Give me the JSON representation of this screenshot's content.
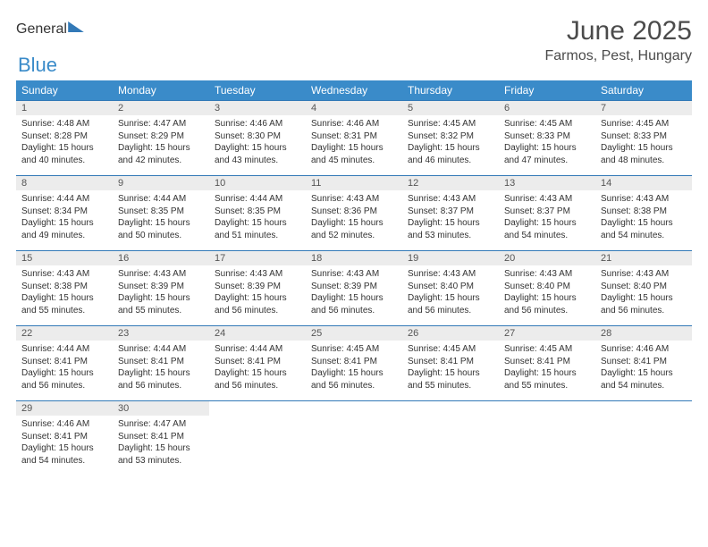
{
  "logo": {
    "word1": "General",
    "word2": "Blue"
  },
  "title": "June 2025",
  "location": "Farmos, Pest, Hungary",
  "colors": {
    "header_bg": "#3a8bc9",
    "header_text": "#ffffff",
    "row_divider": "#3279b7",
    "daynum_bg": "#ececec",
    "body_text": "#333333"
  },
  "weekdays": [
    "Sunday",
    "Monday",
    "Tuesday",
    "Wednesday",
    "Thursday",
    "Friday",
    "Saturday"
  ],
  "days": [
    {
      "n": 1,
      "sunrise": "4:48 AM",
      "sunset": "8:28 PM",
      "daylight": "15 hours and 40 minutes."
    },
    {
      "n": 2,
      "sunrise": "4:47 AM",
      "sunset": "8:29 PM",
      "daylight": "15 hours and 42 minutes."
    },
    {
      "n": 3,
      "sunrise": "4:46 AM",
      "sunset": "8:30 PM",
      "daylight": "15 hours and 43 minutes."
    },
    {
      "n": 4,
      "sunrise": "4:46 AM",
      "sunset": "8:31 PM",
      "daylight": "15 hours and 45 minutes."
    },
    {
      "n": 5,
      "sunrise": "4:45 AM",
      "sunset": "8:32 PM",
      "daylight": "15 hours and 46 minutes."
    },
    {
      "n": 6,
      "sunrise": "4:45 AM",
      "sunset": "8:33 PM",
      "daylight": "15 hours and 47 minutes."
    },
    {
      "n": 7,
      "sunrise": "4:45 AM",
      "sunset": "8:33 PM",
      "daylight": "15 hours and 48 minutes."
    },
    {
      "n": 8,
      "sunrise": "4:44 AM",
      "sunset": "8:34 PM",
      "daylight": "15 hours and 49 minutes."
    },
    {
      "n": 9,
      "sunrise": "4:44 AM",
      "sunset": "8:35 PM",
      "daylight": "15 hours and 50 minutes."
    },
    {
      "n": 10,
      "sunrise": "4:44 AM",
      "sunset": "8:35 PM",
      "daylight": "15 hours and 51 minutes."
    },
    {
      "n": 11,
      "sunrise": "4:43 AM",
      "sunset": "8:36 PM",
      "daylight": "15 hours and 52 minutes."
    },
    {
      "n": 12,
      "sunrise": "4:43 AM",
      "sunset": "8:37 PM",
      "daylight": "15 hours and 53 minutes."
    },
    {
      "n": 13,
      "sunrise": "4:43 AM",
      "sunset": "8:37 PM",
      "daylight": "15 hours and 54 minutes."
    },
    {
      "n": 14,
      "sunrise": "4:43 AM",
      "sunset": "8:38 PM",
      "daylight": "15 hours and 54 minutes."
    },
    {
      "n": 15,
      "sunrise": "4:43 AM",
      "sunset": "8:38 PM",
      "daylight": "15 hours and 55 minutes."
    },
    {
      "n": 16,
      "sunrise": "4:43 AM",
      "sunset": "8:39 PM",
      "daylight": "15 hours and 55 minutes."
    },
    {
      "n": 17,
      "sunrise": "4:43 AM",
      "sunset": "8:39 PM",
      "daylight": "15 hours and 56 minutes."
    },
    {
      "n": 18,
      "sunrise": "4:43 AM",
      "sunset": "8:39 PM",
      "daylight": "15 hours and 56 minutes."
    },
    {
      "n": 19,
      "sunrise": "4:43 AM",
      "sunset": "8:40 PM",
      "daylight": "15 hours and 56 minutes."
    },
    {
      "n": 20,
      "sunrise": "4:43 AM",
      "sunset": "8:40 PM",
      "daylight": "15 hours and 56 minutes."
    },
    {
      "n": 21,
      "sunrise": "4:43 AM",
      "sunset": "8:40 PM",
      "daylight": "15 hours and 56 minutes."
    },
    {
      "n": 22,
      "sunrise": "4:44 AM",
      "sunset": "8:41 PM",
      "daylight": "15 hours and 56 minutes."
    },
    {
      "n": 23,
      "sunrise": "4:44 AM",
      "sunset": "8:41 PM",
      "daylight": "15 hours and 56 minutes."
    },
    {
      "n": 24,
      "sunrise": "4:44 AM",
      "sunset": "8:41 PM",
      "daylight": "15 hours and 56 minutes."
    },
    {
      "n": 25,
      "sunrise": "4:45 AM",
      "sunset": "8:41 PM",
      "daylight": "15 hours and 56 minutes."
    },
    {
      "n": 26,
      "sunrise": "4:45 AM",
      "sunset": "8:41 PM",
      "daylight": "15 hours and 55 minutes."
    },
    {
      "n": 27,
      "sunrise": "4:45 AM",
      "sunset": "8:41 PM",
      "daylight": "15 hours and 55 minutes."
    },
    {
      "n": 28,
      "sunrise": "4:46 AM",
      "sunset": "8:41 PM",
      "daylight": "15 hours and 54 minutes."
    },
    {
      "n": 29,
      "sunrise": "4:46 AM",
      "sunset": "8:41 PM",
      "daylight": "15 hours and 54 minutes."
    },
    {
      "n": 30,
      "sunrise": "4:47 AM",
      "sunset": "8:41 PM",
      "daylight": "15 hours and 53 minutes."
    }
  ],
  "labels": {
    "sunrise": "Sunrise:",
    "sunset": "Sunset:",
    "daylight": "Daylight:"
  },
  "layout": {
    "columns": 7,
    "rows": 5,
    "start_weekday_index": 0
  }
}
